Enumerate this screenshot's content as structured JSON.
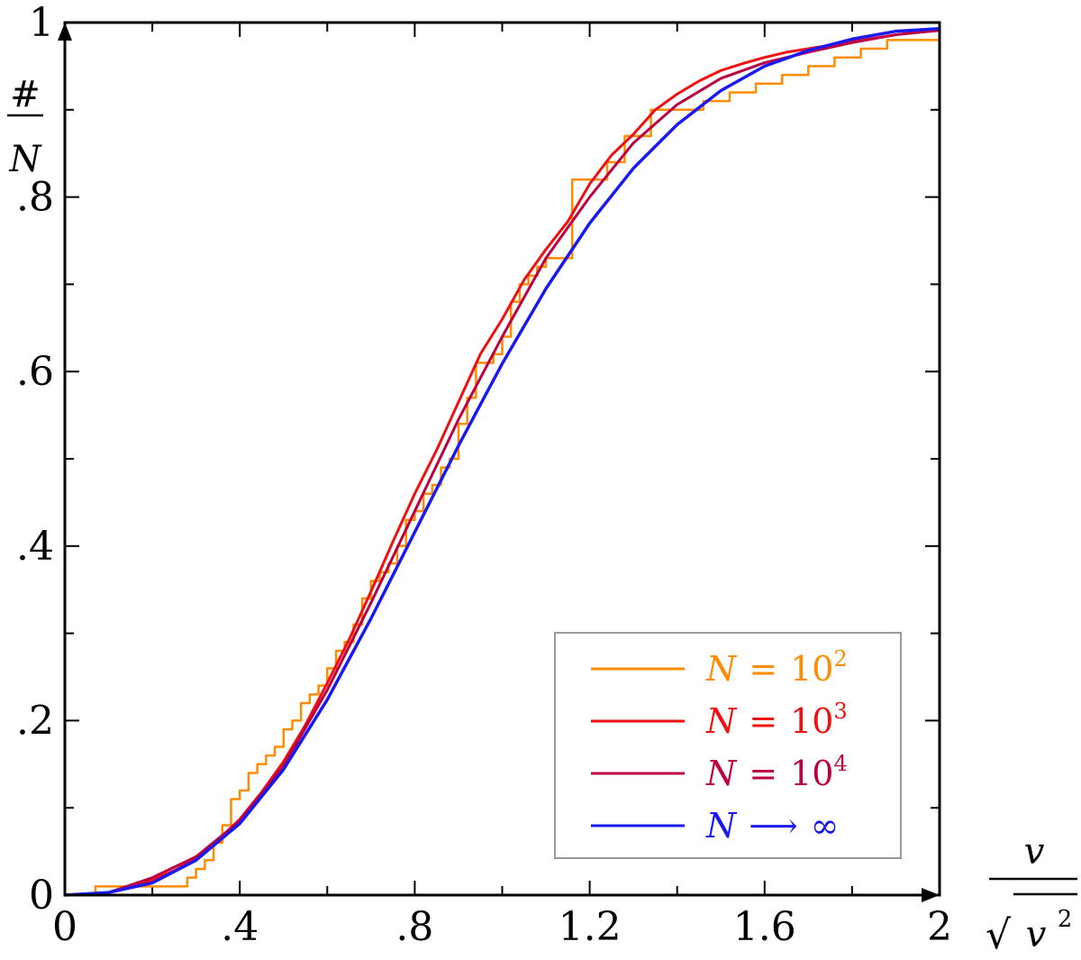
{
  "chart_data": {
    "type": "line",
    "title": "",
    "xlim": [
      0,
      2
    ],
    "ylim": [
      0,
      1
    ],
    "grid": false,
    "legend_placement": "bottom-right",
    "xlabel": {
      "numerator": "v",
      "denominator": "v",
      "denominator_sup": "2",
      "radical": "√"
    },
    "ylabel": {
      "numerator": "#",
      "denominator": "N"
    },
    "x_ticks": [
      {
        "value": 0,
        "label": "0"
      },
      {
        "value": 0.4,
        "label": ".4"
      },
      {
        "value": 0.8,
        "label": ".8"
      },
      {
        "value": 1.2,
        "label": "1.2"
      },
      {
        "value": 1.6,
        "label": "1.6"
      },
      {
        "value": 2,
        "label": "2"
      }
    ],
    "y_ticks": [
      {
        "value": 0,
        "label": "0"
      },
      {
        "value": 0.2,
        "label": ".2"
      },
      {
        "value": 0.4,
        "label": ".4"
      },
      {
        "value": 0.6,
        "label": ".6"
      },
      {
        "value": 0.8,
        "label": ".8"
      },
      {
        "value": 1,
        "label": "1"
      }
    ],
    "x_minor_ticks": [
      0.2,
      0.6,
      1.0,
      1.4,
      1.8
    ],
    "y_minor_ticks": [
      0.1,
      0.3,
      0.5,
      0.7,
      0.9
    ],
    "legend": [
      {
        "symbol": "N",
        "op": "=",
        "base": "10",
        "sup": "2",
        "color": "#ff8c00"
      },
      {
        "symbol": "N",
        "op": "=",
        "base": "10",
        "sup": "3",
        "color": "#ee1111"
      },
      {
        "symbol": "N",
        "op": "=",
        "base": "10",
        "sup": "4",
        "color": "#bb0044"
      },
      {
        "symbol": "N",
        "op": "⟶",
        "base": "∞",
        "sup": "",
        "color": "#1a1aee"
      }
    ],
    "series": [
      {
        "name": "N = 10^2",
        "color": "#ff8c00",
        "step": true,
        "x": [
          0,
          0.07,
          0.28,
          0.3,
          0.32,
          0.34,
          0.36,
          0.38,
          0.4,
          0.42,
          0.44,
          0.46,
          0.48,
          0.5,
          0.52,
          0.54,
          0.56,
          0.58,
          0.6,
          0.62,
          0.64,
          0.66,
          0.68,
          0.7,
          0.72,
          0.74,
          0.76,
          0.78,
          0.8,
          0.82,
          0.84,
          0.86,
          0.88,
          0.9,
          0.92,
          0.94,
          0.96,
          0.98,
          1.0,
          1.02,
          1.04,
          1.06,
          1.08,
          1.1,
          1.12,
          1.16,
          1.18,
          1.2,
          1.24,
          1.28,
          1.34,
          1.4,
          1.46,
          1.52,
          1.58,
          1.64,
          1.7,
          1.76,
          1.82,
          1.88,
          1.94,
          2.0
        ],
        "y": [
          0,
          0.01,
          0.02,
          0.03,
          0.04,
          0.06,
          0.08,
          0.11,
          0.12,
          0.14,
          0.15,
          0.16,
          0.17,
          0.19,
          0.2,
          0.22,
          0.23,
          0.24,
          0.26,
          0.28,
          0.29,
          0.31,
          0.34,
          0.36,
          0.37,
          0.38,
          0.4,
          0.43,
          0.44,
          0.46,
          0.47,
          0.49,
          0.5,
          0.54,
          0.57,
          0.61,
          0.61,
          0.62,
          0.64,
          0.68,
          0.7,
          0.71,
          0.72,
          0.73,
          0.73,
          0.82,
          0.82,
          0.82,
          0.84,
          0.87,
          0.9,
          0.9,
          0.91,
          0.92,
          0.93,
          0.94,
          0.95,
          0.96,
          0.97,
          0.98,
          0.98,
          0.99
        ]
      },
      {
        "name": "N = 10^3",
        "color": "#ee1111",
        "step": false,
        "x": [
          0,
          0.1,
          0.2,
          0.25,
          0.3,
          0.35,
          0.4,
          0.45,
          0.5,
          0.55,
          0.6,
          0.65,
          0.7,
          0.75,
          0.8,
          0.85,
          0.9,
          0.95,
          1.0,
          1.05,
          1.1,
          1.15,
          1.2,
          1.25,
          1.3,
          1.35,
          1.4,
          1.45,
          1.5,
          1.55,
          1.6,
          1.65,
          1.7,
          1.8,
          1.9,
          2.0
        ],
        "y": [
          0,
          0.003,
          0.017,
          0.028,
          0.042,
          0.063,
          0.087,
          0.118,
          0.153,
          0.195,
          0.243,
          0.293,
          0.348,
          0.405,
          0.46,
          0.51,
          0.565,
          0.62,
          0.66,
          0.705,
          0.74,
          0.772,
          0.815,
          0.848,
          0.872,
          0.9,
          0.918,
          0.933,
          0.945,
          0.953,
          0.96,
          0.966,
          0.97,
          0.978,
          0.986,
          0.992
        ]
      },
      {
        "name": "N = 10^4",
        "color": "#bb0044",
        "step": false,
        "x": [
          0,
          0.1,
          0.2,
          0.3,
          0.4,
          0.5,
          0.6,
          0.7,
          0.8,
          0.9,
          1.0,
          1.1,
          1.2,
          1.3,
          1.4,
          1.5,
          1.6,
          1.7,
          1.8,
          1.9,
          2.0
        ],
        "y": [
          0,
          0.003,
          0.02,
          0.044,
          0.085,
          0.148,
          0.235,
          0.335,
          0.44,
          0.545,
          0.64,
          0.73,
          0.8,
          0.862,
          0.906,
          0.936,
          0.954,
          0.966,
          0.977,
          0.986,
          0.991
        ]
      },
      {
        "name": "N → ∞",
        "color": "#1a1aee",
        "step": false,
        "x": [
          0,
          0.1,
          0.2,
          0.3,
          0.4,
          0.5,
          0.6,
          0.7,
          0.8,
          0.9,
          1.0,
          1.1,
          1.2,
          1.3,
          1.4,
          1.5,
          1.6,
          1.7,
          1.8,
          1.9,
          2.0
        ],
        "y": [
          0,
          0.003,
          0.014,
          0.04,
          0.082,
          0.144,
          0.224,
          0.317,
          0.416,
          0.515,
          0.609,
          0.695,
          0.77,
          0.833,
          0.883,
          0.922,
          0.95,
          0.968,
          0.981,
          0.99,
          0.993
        ]
      }
    ]
  }
}
